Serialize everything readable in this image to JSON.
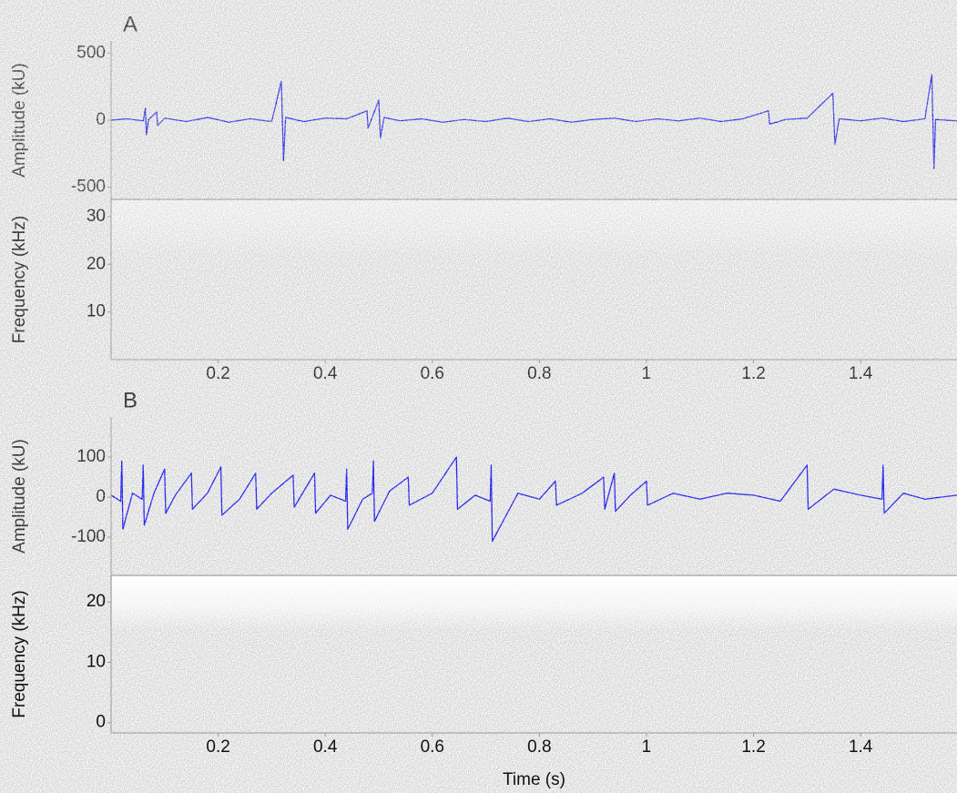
{
  "chart_data": [
    {
      "type": "line",
      "title": "A",
      "ylabel": "Amplitude (kU)",
      "xlim": [
        0,
        1.58
      ],
      "ylim": [
        -590,
        590
      ],
      "yticks": [
        -500,
        0,
        500
      ],
      "x": [
        0,
        0.03,
        0.06,
        0.064,
        0.066,
        0.07,
        0.085,
        0.087,
        0.1,
        0.14,
        0.18,
        0.22,
        0.26,
        0.3,
        0.318,
        0.322,
        0.326,
        0.36,
        0.4,
        0.44,
        0.478,
        0.48,
        0.5,
        0.503,
        0.51,
        0.54,
        0.58,
        0.62,
        0.66,
        0.7,
        0.74,
        0.78,
        0.82,
        0.86,
        0.9,
        0.94,
        0.98,
        1.02,
        1.06,
        1.1,
        1.14,
        1.18,
        1.228,
        1.23,
        1.26,
        1.3,
        1.348,
        1.352,
        1.36,
        1.4,
        1.44,
        1.48,
        1.52,
        1.533,
        1.537,
        1.54,
        1.58
      ],
      "series": [
        {
          "color": "#0000ff",
          "values": [
            0,
            10,
            -5,
            90,
            -110,
            5,
            60,
            -40,
            15,
            -10,
            20,
            -15,
            10,
            -10,
            290,
            -300,
            20,
            -10,
            15,
            10,
            70,
            -60,
            150,
            -130,
            20,
            -5,
            10,
            -15,
            5,
            -10,
            15,
            -10,
            10,
            -15,
            5,
            15,
            -10,
            10,
            -5,
            15,
            -10,
            10,
            70,
            -30,
            5,
            15,
            200,
            -180,
            10,
            -5,
            15,
            -10,
            10,
            340,
            -360,
            5,
            -5
          ]
        }
      ]
    },
    {
      "type": "spectrogram",
      "ylabel": "Frequency (kHz)",
      "xlim": [
        0,
        1.58
      ],
      "ylim": [
        0,
        33.6
      ],
      "yticks": [
        10,
        20,
        30
      ],
      "xticks": [
        0.2,
        0.4,
        0.6,
        0.8,
        1,
        1.2,
        1.4
      ]
    },
    {
      "type": "line",
      "title": "B",
      "ylabel": "Amplitude (kU)",
      "xlim": [
        0,
        1.58
      ],
      "ylim": [
        -195,
        200
      ],
      "yticks": [
        -100,
        0,
        100
      ],
      "x": [
        0,
        0.018,
        0.02,
        0.022,
        0.04,
        0.058,
        0.06,
        0.062,
        0.08,
        0.1,
        0.102,
        0.12,
        0.15,
        0.152,
        0.18,
        0.205,
        0.207,
        0.24,
        0.27,
        0.272,
        0.3,
        0.34,
        0.342,
        0.38,
        0.382,
        0.41,
        0.438,
        0.44,
        0.442,
        0.47,
        0.488,
        0.49,
        0.492,
        0.52,
        0.555,
        0.557,
        0.6,
        0.645,
        0.647,
        0.68,
        0.708,
        0.71,
        0.712,
        0.76,
        0.8,
        0.83,
        0.832,
        0.88,
        0.92,
        0.922,
        0.94,
        0.942,
        0.97,
        1.0,
        1.002,
        1.05,
        1.1,
        1.15,
        1.2,
        1.25,
        1.3,
        1.302,
        1.35,
        1.4,
        1.44,
        1.442,
        1.444,
        1.48,
        1.52,
        1.58
      ],
      "series": [
        {
          "color": "#0000ff",
          "values": [
            5,
            -10,
            90,
            -80,
            10,
            -5,
            80,
            -70,
            10,
            70,
            -40,
            5,
            60,
            -30,
            10,
            75,
            -45,
            -5,
            60,
            -30,
            10,
            55,
            -25,
            60,
            -40,
            5,
            -10,
            70,
            -80,
            -5,
            10,
            90,
            -60,
            15,
            50,
            -20,
            10,
            100,
            -30,
            5,
            -10,
            80,
            -110,
            10,
            -5,
            40,
            -20,
            10,
            50,
            -30,
            60,
            -35,
            5,
            40,
            -20,
            10,
            -5,
            10,
            5,
            -10,
            80,
            -30,
            20,
            5,
            -5,
            80,
            -40,
            10,
            -5,
            5
          ]
        }
      ]
    },
    {
      "type": "spectrogram",
      "ylabel": "Frequency (kHz)",
      "xlabel": "Time (s)",
      "xlim": [
        0,
        1.58
      ],
      "ylim": [
        -1.7,
        24.4
      ],
      "yticks": [
        0,
        10,
        20
      ],
      "xticks": [
        0.2,
        0.4,
        0.6,
        0.8,
        1,
        1.2,
        1.4
      ]
    }
  ]
}
